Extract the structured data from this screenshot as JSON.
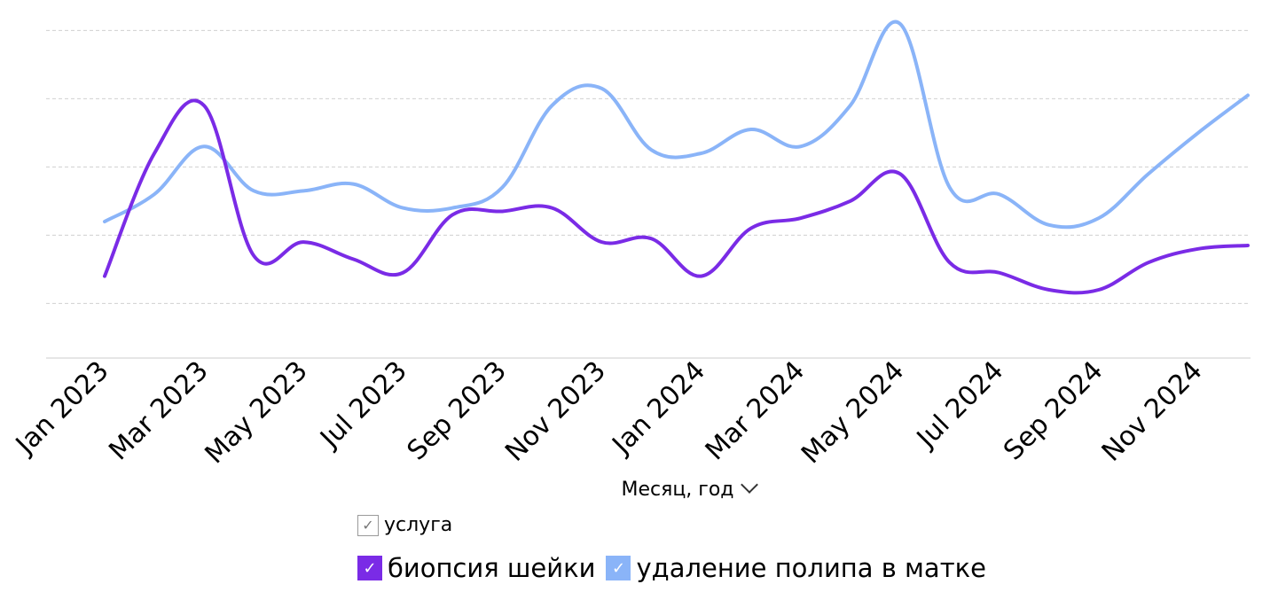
{
  "chart_data": {
    "type": "line",
    "x": [
      "Jan 2023",
      "Feb 2023",
      "Mar 2023",
      "Apr 2023",
      "May 2023",
      "Jun 2023",
      "Jul 2023",
      "Aug 2023",
      "Sep 2023",
      "Oct 2023",
      "Nov 2023",
      "Dec 2023",
      "Jan 2024",
      "Feb 2024",
      "Mar 2024",
      "Apr 2024",
      "May 2024",
      "Jun 2024",
      "Jul 2024",
      "Aug 2024",
      "Sep 2024",
      "Oct 2024",
      "Nov 2024",
      "Dec 2024"
    ],
    "x_tick_labels": [
      "Jan 2023",
      "Mar 2023",
      "May 2023",
      "Jul 2023",
      "Sep 2023",
      "Nov 2023",
      "Jan 2024",
      "Mar 2024",
      "May 2024",
      "Jul 2024",
      "Sep 2024",
      "Nov 2024"
    ],
    "xlabel": "Месяц, год",
    "ylabel": "",
    "ylim": [
      0,
      46
    ],
    "y_gridlines": [
      8,
      18,
      28,
      38,
      48
    ],
    "grid": true,
    "legend_position": "bottom",
    "series": [
      {
        "name": "биопсия шейки",
        "color": "#7a2be6",
        "values": [
          12,
          30,
          37,
          15,
          17,
          14.5,
          12.5,
          21,
          21.5,
          22,
          17,
          17.5,
          12,
          19,
          20.5,
          23,
          27,
          14,
          12.5,
          10,
          10,
          14,
          16,
          16.5
        ]
      },
      {
        "name": "удаление полипа в матке",
        "color": "#8ab4f8",
        "values": [
          20,
          24,
          31,
          24.5,
          24.5,
          25.5,
          22,
          22,
          25,
          37,
          39.5,
          30.5,
          30,
          33.5,
          31,
          37,
          49,
          25,
          24,
          19.5,
          20.5,
          27,
          33,
          38.5
        ]
      }
    ]
  },
  "x_axis": {
    "title": "Месяц, год",
    "chevron_icon": "chevron-down-icon"
  },
  "legend": {
    "header_label": "услуга",
    "header_check": "✓",
    "items": [
      {
        "label": "биопсия шейки",
        "color": "#7a2be6",
        "check": "✓"
      },
      {
        "label": "удаление полипа в матке",
        "color": "#8ab4f8",
        "check": "✓"
      }
    ]
  }
}
